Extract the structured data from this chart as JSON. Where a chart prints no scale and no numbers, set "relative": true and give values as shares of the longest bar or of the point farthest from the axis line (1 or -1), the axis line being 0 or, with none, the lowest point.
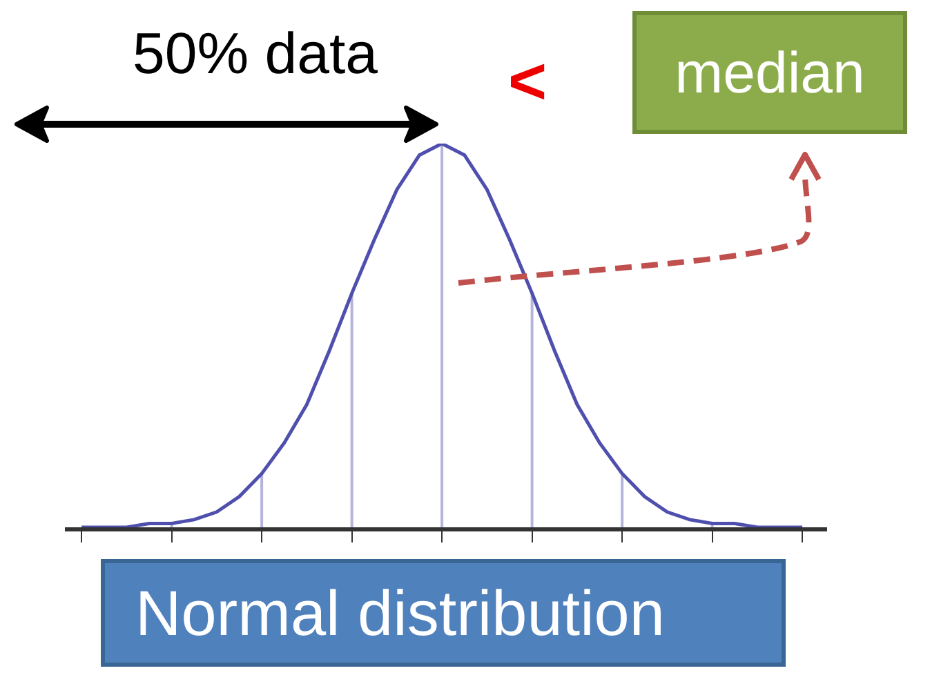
{
  "chart_data": {
    "type": "line",
    "relative": true,
    "categories": [
      null,
      null,
      null,
      null,
      null,
      null,
      null,
      null,
      null,
      null,
      null,
      null,
      null,
      null,
      null,
      null,
      null,
      null,
      null,
      null,
      null,
      null,
      null,
      null,
      null,
      null,
      null,
      null,
      null,
      null,
      null,
      null,
      null
    ],
    "series": [
      {
        "color": "#4f4fae",
        "values": [
          0,
          0,
          0,
          0.01,
          0.01,
          0.02,
          0.04,
          0.08,
          0.14,
          0.22,
          0.32,
          0.46,
          0.61,
          0.75,
          0.88,
          0.97,
          1,
          0.97,
          0.88,
          0.75,
          0.61,
          0.46,
          0.32,
          0.22,
          0.14,
          0.08,
          0.04,
          0.02,
          0.01,
          0.01,
          0,
          0,
          0
        ]
      }
    ],
    "annotations": [
      "50% data",
      "<",
      "median",
      "Normal distribution"
    ],
    "grid": false
  }
}
